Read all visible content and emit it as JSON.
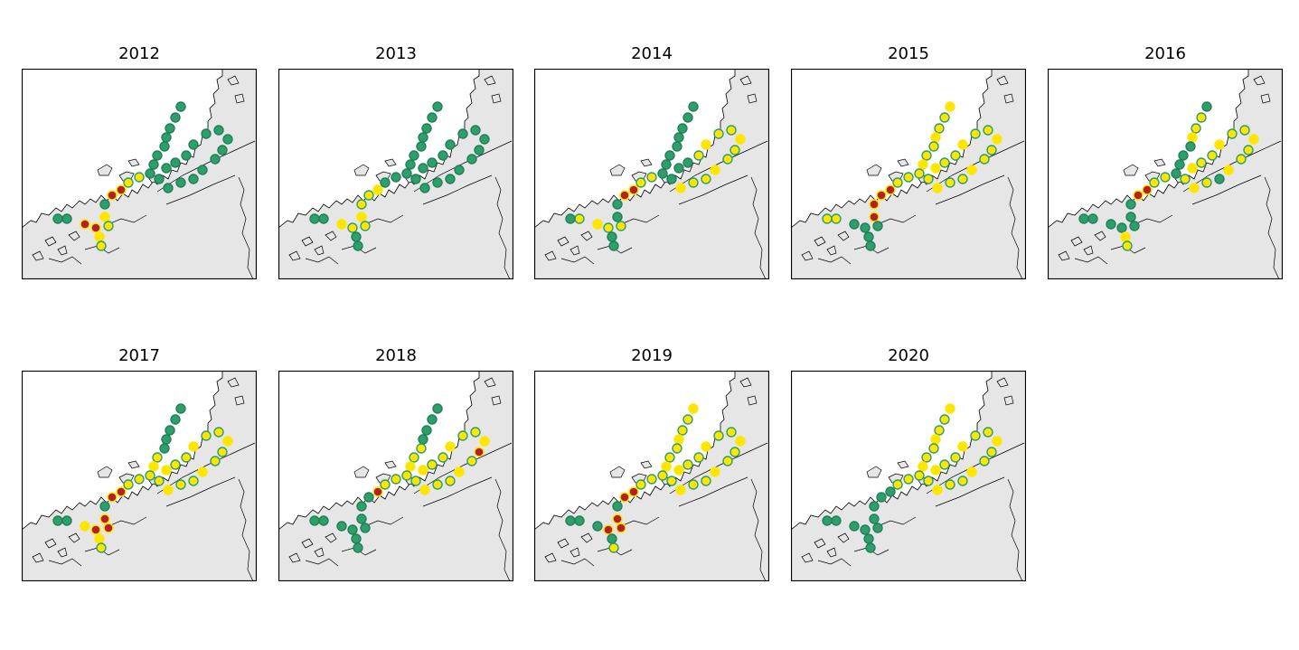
{
  "figure": {
    "panels": [
      {
        "title": "2012"
      },
      {
        "title": "2013"
      },
      {
        "title": "2014"
      },
      {
        "title": "2015"
      },
      {
        "title": "2016"
      },
      {
        "title": "2017"
      },
      {
        "title": "2018"
      },
      {
        "title": "2019"
      },
      {
        "title": "2020"
      }
    ]
  },
  "colors": {
    "land": "#e6e6e6",
    "sea": "#ffffff",
    "coastline": "#000000",
    "frame": "#000000",
    "status_green": "#2e9e6b",
    "status_green_edge": "#22805a",
    "status_yellow": "#ffe600",
    "status_red": "#b22222"
  },
  "legend_note": "",
  "chart_data": []
}
